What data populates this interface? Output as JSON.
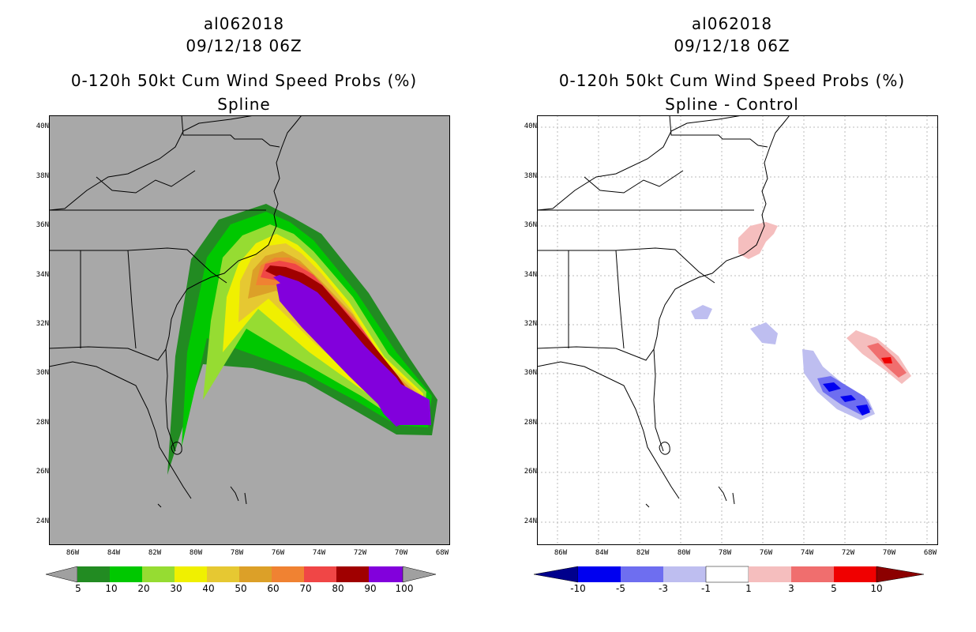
{
  "left_panel": {
    "storm_id": "al062018",
    "datetime": "09/12/18 06Z",
    "product_title": "0-120h 50kt Cum Wind Speed Probs (%)",
    "subtitle": "Spline",
    "legend": {
      "levels": [
        "5",
        "10",
        "20",
        "30",
        "40",
        "50",
        "60",
        "70",
        "80",
        "90",
        "100"
      ],
      "colors": [
        "#228B22",
        "#00C800",
        "#96DC32",
        "#F0F000",
        "#E6C832",
        "#DCA028",
        "#F08232",
        "#F04646",
        "#A00000",
        "#8200DC",
        "#A0A0A0"
      ]
    },
    "field_colors": {
      "background": "#A8A8A8"
    }
  },
  "right_panel": {
    "storm_id": "al062018",
    "datetime": "09/12/18 06Z",
    "product_title": "0-120h 50kt Cum Wind Speed Probs (%)",
    "subtitle": "Spline - Control",
    "legend": {
      "levels": [
        "-10",
        "-5",
        "-3",
        "-1",
        "1",
        "3",
        "5",
        "10"
      ],
      "colors": [
        "#00008C",
        "#0000F0",
        "#6E6EF0",
        "#BEBEF0",
        "#FFFFFF",
        "#F5BEBE",
        "#F06E6E",
        "#F00000",
        "#8C0000"
      ]
    }
  },
  "axes": {
    "lat_labels": [
      "40N",
      "38N",
      "36N",
      "34N",
      "32N",
      "30N",
      "28N",
      "26N",
      "24N"
    ],
    "lon_labels": [
      "86W",
      "84W",
      "82W",
      "80W",
      "78W",
      "76W",
      "74W",
      "72W",
      "70W",
      "68W"
    ],
    "lat_range": [
      23,
      40.5
    ],
    "lon_range": [
      -87,
      -67.5
    ]
  }
}
